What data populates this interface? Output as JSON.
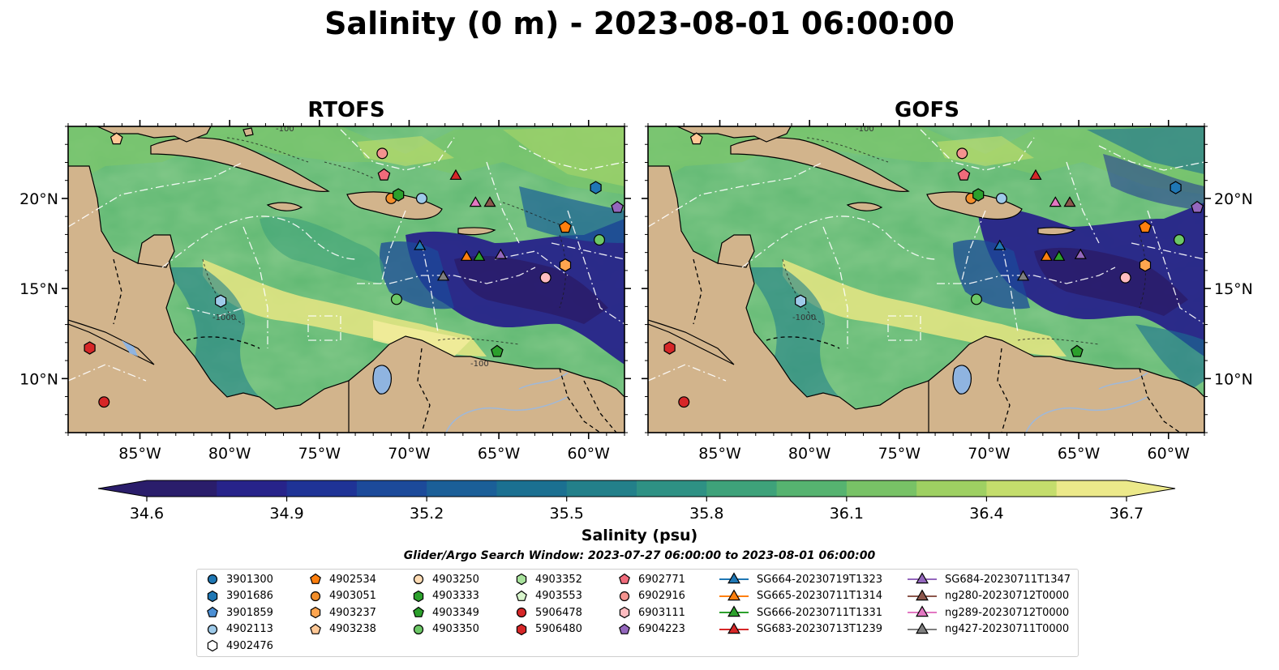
{
  "title": "Salinity (0 m) - 2023-08-01 06:00:00",
  "panels": [
    {
      "title": "RTOFS"
    },
    {
      "title": "GOFS"
    }
  ],
  "map": {
    "lon_range": [
      -89,
      -58
    ],
    "lat_range": [
      7,
      24
    ],
    "xtick_labels": [
      "85°W",
      "80°W",
      "75°W",
      "70°W",
      "65°W",
      "60°W"
    ],
    "ytick_labels": [
      "20°N",
      "15°N",
      "10°N"
    ],
    "contour_labels": [
      "-100",
      "-1000",
      "-1000",
      "-100",
      "-100"
    ],
    "land_color": "#d2b48c",
    "lake_color": "#8fb4e0",
    "river_color": "#9fb8d9"
  },
  "colorbar": {
    "label": "Salinity (psu)",
    "ticks": [
      "34.6",
      "34.9",
      "35.2",
      "35.5",
      "35.8",
      "36.1",
      "36.4",
      "36.7"
    ],
    "min": 34.6,
    "max": 36.7,
    "colors": [
      "#2a1d6b",
      "#27238a",
      "#1f3396",
      "#1c4a9a",
      "#1b5f98",
      "#1b7091",
      "#23808a",
      "#2e9184",
      "#3ea27a",
      "#56b370",
      "#78c266",
      "#9ed062",
      "#c4dd6c",
      "#ece98a"
    ]
  },
  "search_window": "Glider/Argo Search Window: 2023-07-27 06:00:00 to 2023-08-01 06:00:00",
  "legend": {
    "columns": [
      [
        {
          "label": "3901300",
          "marker": "circle",
          "color": "#1f77b4"
        },
        {
          "label": "3901686",
          "marker": "hexagon",
          "color": "#1f77b4"
        },
        {
          "label": "3901859",
          "marker": "pentagon",
          "color": "#4b8fd4"
        },
        {
          "label": "4902113",
          "marker": "circle",
          "color": "#9ecae9"
        },
        {
          "label": "4902476",
          "marker": "hexagon",
          "color": "#ffffff"
        }
      ],
      [
        {
          "label": "4902534",
          "marker": "pentagon",
          "color": "#ff7f0e"
        },
        {
          "label": "4903051",
          "marker": "circle",
          "color": "#f28e2b"
        },
        {
          "label": "4903237",
          "marker": "hexagon",
          "color": "#ffa54f"
        },
        {
          "label": "4903238",
          "marker": "pentagon",
          "color": "#ffc896"
        }
      ],
      [
        {
          "label": "4903250",
          "marker": "circle",
          "color": "#ffdcb4"
        },
        {
          "label": "4903333",
          "marker": "hexagon",
          "color": "#2ca02c"
        },
        {
          "label": "4903349",
          "marker": "pentagon",
          "color": "#2ca02c"
        },
        {
          "label": "4903350",
          "marker": "circle",
          "color": "#6cc866"
        }
      ],
      [
        {
          "label": "4903352",
          "marker": "hexagon",
          "color": "#a8e29c"
        },
        {
          "label": "4903553",
          "marker": "pentagon",
          "color": "#d8f5cc"
        },
        {
          "label": "5906478",
          "marker": "circle",
          "color": "#d62728"
        },
        {
          "label": "5906480",
          "marker": "hexagon",
          "color": "#d62728"
        }
      ],
      [
        {
          "label": "6902771",
          "marker": "pentagon",
          "color": "#f06b7b"
        },
        {
          "label": "6902916",
          "marker": "circle",
          "color": "#f4938f"
        },
        {
          "label": "6903111",
          "marker": "hexagon",
          "color": "#ffbcc0"
        },
        {
          "label": "6904223",
          "marker": "pentagon",
          "color": "#9467bd"
        }
      ],
      [
        {
          "label": "SG664-20230719T1323",
          "marker": "triangle-line",
          "color": "#1f77b4"
        },
        {
          "label": "SG665-20230711T1314",
          "marker": "triangle-line",
          "color": "#ff7f0e"
        },
        {
          "label": "SG666-20230711T1331",
          "marker": "triangle-line",
          "color": "#2ca02c"
        },
        {
          "label": "SG683-20230713T1239",
          "marker": "triangle-line",
          "color": "#d62728"
        }
      ],
      [
        {
          "label": "SG684-20230711T1347",
          "marker": "triangle-line",
          "color": "#9467bd"
        },
        {
          "label": "ng280-20230712T0000",
          "marker": "triangle-line",
          "color": "#8c564b"
        },
        {
          "label": "ng289-20230712T0000",
          "marker": "triangle-line",
          "color": "#e377c2"
        },
        {
          "label": "ng427-20230711T0000",
          "marker": "triangle-line",
          "color": "#7f7f7f"
        }
      ]
    ]
  },
  "observations": [
    {
      "lon": -86.3,
      "lat": 23.3,
      "marker": "pentagon",
      "color": "#ffc896"
    },
    {
      "lon": -71.5,
      "lat": 22.5,
      "marker": "circle",
      "color": "#f4938f"
    },
    {
      "lon": -71.4,
      "lat": 21.3,
      "marker": "pentagon",
      "color": "#f06b7b"
    },
    {
      "lon": -67.4,
      "lat": 21.3,
      "marker": "triangle",
      "color": "#d62728"
    },
    {
      "lon": -59.6,
      "lat": 20.6,
      "marker": "hexagon",
      "color": "#1f77b4"
    },
    {
      "lon": -58.4,
      "lat": 19.5,
      "marker": "pentagon",
      "color": "#9467bd"
    },
    {
      "lon": -71.0,
      "lat": 20.0,
      "marker": "circle",
      "color": "#f28e2b"
    },
    {
      "lon": -70.6,
      "lat": 20.2,
      "marker": "hexagon",
      "color": "#2ca02c"
    },
    {
      "lon": -69.3,
      "lat": 20.0,
      "marker": "circle",
      "color": "#9ecae9"
    },
    {
      "lon": -66.3,
      "lat": 19.8,
      "marker": "triangle",
      "color": "#e377c2"
    },
    {
      "lon": -65.5,
      "lat": 19.8,
      "marker": "triangle",
      "color": "#8c564b"
    },
    {
      "lon": -61.3,
      "lat": 18.4,
      "marker": "pentagon",
      "color": "#ff7f0e"
    },
    {
      "lon": -59.4,
      "lat": 17.7,
      "marker": "circle",
      "color": "#6cc866"
    },
    {
      "lon": -69.4,
      "lat": 17.4,
      "marker": "triangle",
      "color": "#1f77b4"
    },
    {
      "lon": -66.8,
      "lat": 16.8,
      "marker": "triangle",
      "color": "#ff7f0e"
    },
    {
      "lon": -66.1,
      "lat": 16.8,
      "marker": "triangle",
      "color": "#2ca02c"
    },
    {
      "lon": -64.9,
      "lat": 16.9,
      "marker": "triangle",
      "color": "#9467bd"
    },
    {
      "lon": -68.1,
      "lat": 15.7,
      "marker": "triangle",
      "color": "#7f7f7f"
    },
    {
      "lon": -62.4,
      "lat": 15.6,
      "marker": "circle",
      "color": "#ffbcc0"
    },
    {
      "lon": -61.3,
      "lat": 16.3,
      "marker": "hexagon",
      "color": "#ffa54f"
    },
    {
      "lon": -80.5,
      "lat": 14.3,
      "marker": "hexagon",
      "color": "#9ecae9"
    },
    {
      "lon": -70.7,
      "lat": 14.4,
      "marker": "circle",
      "color": "#6cc866"
    },
    {
      "lon": -87.8,
      "lat": 11.7,
      "marker": "hexagon",
      "color": "#d62728"
    },
    {
      "lon": -65.1,
      "lat": 11.5,
      "marker": "pentagon",
      "color": "#2ca02c"
    },
    {
      "lon": -87.0,
      "lat": 8.7,
      "marker": "circle",
      "color": "#d62728"
    }
  ]
}
